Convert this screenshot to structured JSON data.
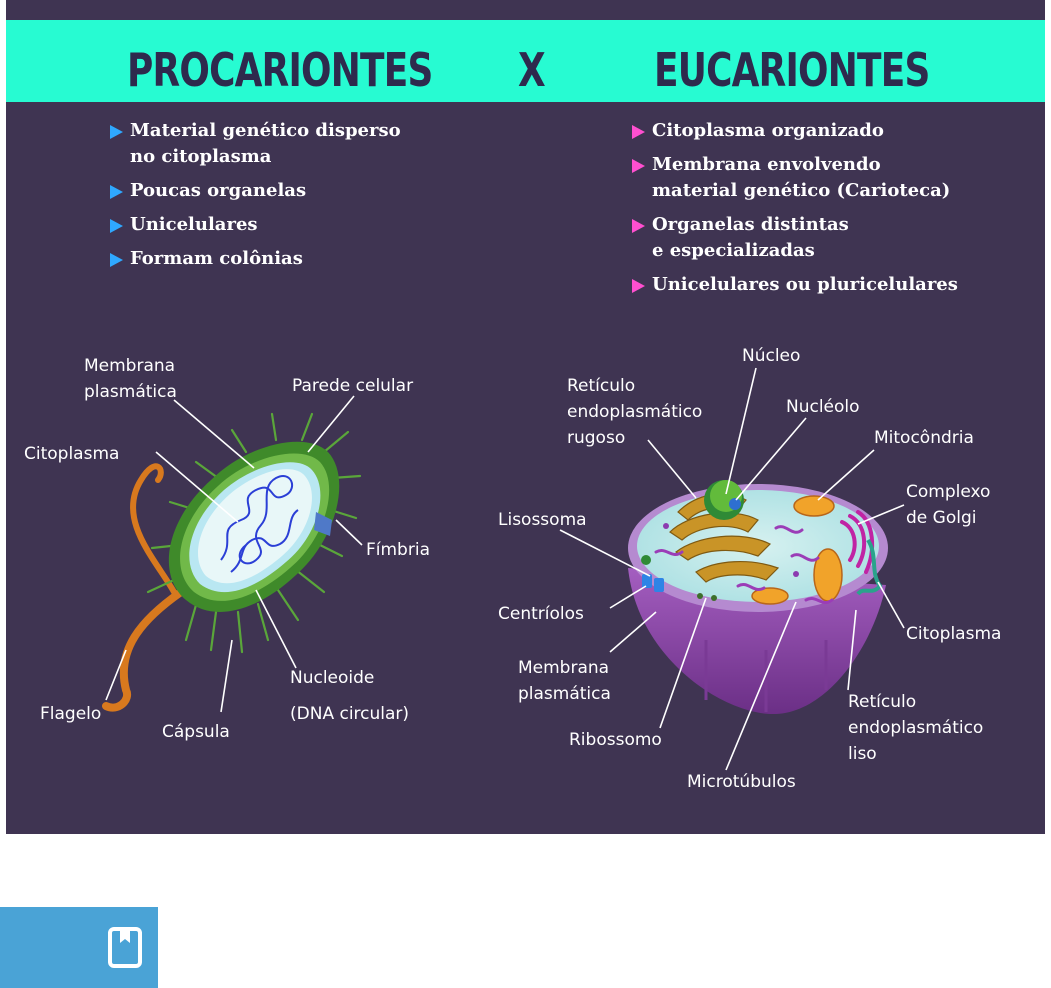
{
  "header": {
    "left_title": "PROCARIONTES",
    "separator": "X",
    "right_title": "EUCARIONTES"
  },
  "prokaryote": {
    "bullets": [
      [
        "Material genético disperso",
        "no citoplasma"
      ],
      [
        "Poucas organelas"
      ],
      [
        "Unicelulares"
      ],
      [
        "Formam colônias"
      ]
    ],
    "labels": {
      "membrana": [
        "Membrana",
        "plasmática"
      ],
      "parede": "Parede celular",
      "citoplasma": "Citoplasma",
      "fimbria": "Fímbria",
      "nucleoide": [
        "Nucleoide",
        "(DNA circular)"
      ],
      "flagelo": "Flagelo",
      "capsula": "Cápsula"
    }
  },
  "eukaryote": {
    "bullets": [
      [
        "Citoplasma organizado"
      ],
      [
        "Membrana envolvendo",
        "material genético (Carioteca)"
      ],
      [
        "Organelas distintas",
        "e especializadas"
      ],
      [
        "Unicelulares ou pluricelulares"
      ]
    ],
    "labels": {
      "nucleo": "Núcleo",
      "reticulo_rugoso": [
        "Retículo",
        "endoplasmático",
        "rugoso"
      ],
      "nucleolo": "Nucléolo",
      "mitocondria": "Mitocôndria",
      "golgi": [
        "Complexo",
        "de Golgi"
      ],
      "lisossoma": "Lisossoma",
      "centriolos": "Centríolos",
      "citoplasma": "Citoplasma",
      "membrana": [
        "Membrana",
        "plasmática"
      ],
      "reticulo_liso": [
        "Retículo",
        "endoplasmático",
        "liso"
      ],
      "ribossomo": "Ribossomo",
      "microtubulos": "Microtúbulos"
    }
  },
  "colors": {
    "background": "#3f3452",
    "header": "#27fbd2",
    "title": "#2e2a4d",
    "bullet_left": "#2fa8ff",
    "bullet_right": "#ff4fd0",
    "bookmark_button": "#4aa3d6"
  },
  "icons": {
    "bookmark": "bookmark-icon"
  }
}
